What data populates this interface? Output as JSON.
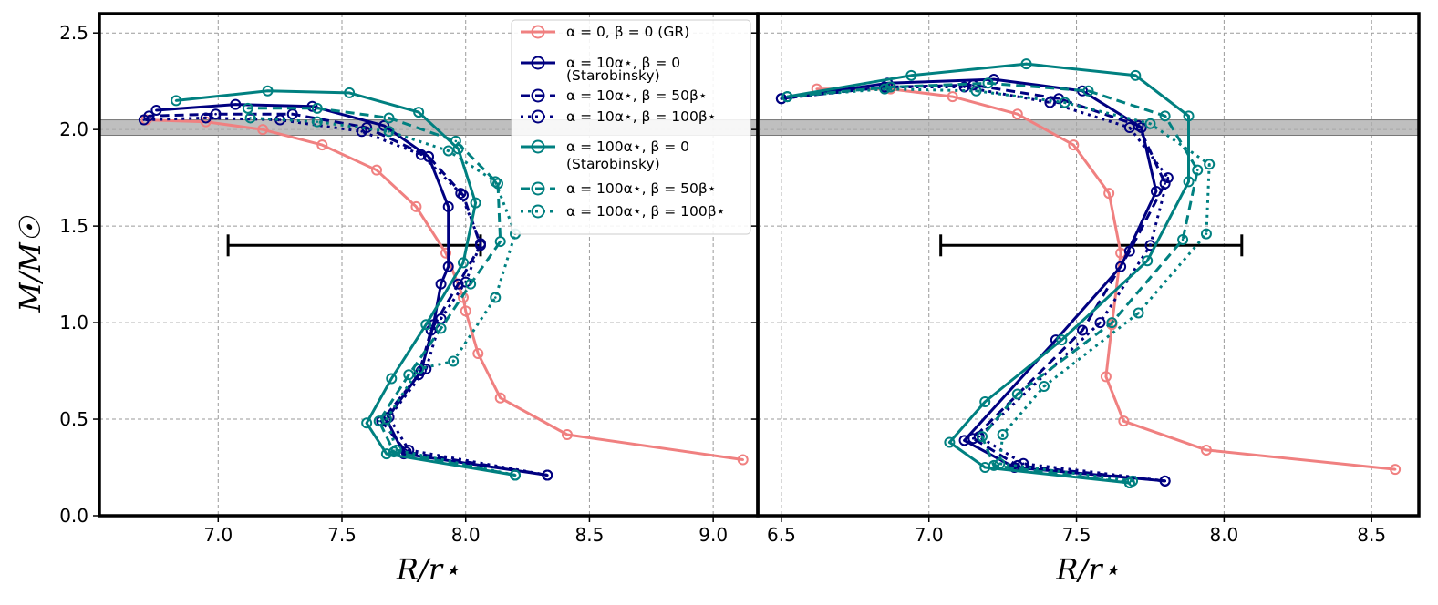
{
  "figure": {
    "ylabel": "M/M☉",
    "legend": {
      "placement": "top-right of left panel",
      "entries": [
        {
          "series": "GR",
          "lines": [
            "α = 0, β = 0 (GR)"
          ]
        },
        {
          "series": "a10_b0",
          "lines": [
            "α = 10α⋆, β = 0",
            "(Starobinsky)"
          ]
        },
        {
          "series": "a10_b50",
          "lines": [
            "α = 10α⋆, β = 50β⋆"
          ]
        },
        {
          "series": "a10_b100",
          "lines": [
            "α = 10α⋆, β = 100β⋆"
          ]
        },
        {
          "series": "a100_b0",
          "lines": [
            "α = 100α⋆, β = 0",
            "(Starobinsky)"
          ]
        },
        {
          "series": "a100_b50",
          "lines": [
            "α = 100α⋆, β = 50β⋆"
          ]
        },
        {
          "series": "a100_b100",
          "lines": [
            "α = 100α⋆, β = 100β⋆"
          ]
        }
      ]
    }
  },
  "styles": {
    "GR": {
      "color": "#f08080",
      "dash": "solid"
    },
    "a10_b0": {
      "color": "#000080",
      "dash": "solid"
    },
    "a10_b50": {
      "color": "#000080",
      "dash": "dashed"
    },
    "a10_b100": {
      "color": "#000080",
      "dash": "dotted"
    },
    "a100_b0": {
      "color": "#008080",
      "dash": "solid"
    },
    "a100_b50": {
      "color": "#008080",
      "dash": "dashed"
    },
    "a100_b100": {
      "color": "#008080",
      "dash": "dotted"
    },
    "band_color": "#a9a9a9",
    "errorbar_color": "#000000"
  },
  "chart_data": [
    {
      "type": "line",
      "panel": "left",
      "xlabel": "R/r⋆",
      "ylabel": "M/M☉",
      "xlim": [
        6.52,
        9.18
      ],
      "ylim": [
        0.0,
        2.6
      ],
      "xticks": [
        7.0,
        7.5,
        8.0,
        8.5,
        9.0
      ],
      "xtick_labels": [
        "7.0",
        "7.5",
        "8.0",
        "8.5",
        "9.0"
      ],
      "yticks": [
        0.0,
        0.5,
        1.0,
        1.5,
        2.0,
        2.5
      ],
      "ytick_labels": [
        "0.0",
        "0.5",
        "1.0",
        "1.5",
        "2.0",
        "2.5"
      ],
      "grid": true,
      "band": {
        "y_min": 1.97,
        "y_max": 2.05
      },
      "errorbar": {
        "y": 1.4,
        "x_min": 7.04,
        "x_max": 8.06
      },
      "series": [
        {
          "id": "GR",
          "name": "α = 0, β = 0 (GR)",
          "points": [
            [
              9.12,
              0.29
            ],
            [
              8.41,
              0.42
            ],
            [
              8.14,
              0.61
            ],
            [
              8.05,
              0.84
            ],
            [
              8.0,
              1.06
            ],
            [
              7.99,
              1.13
            ],
            [
              7.92,
              1.36
            ],
            [
              7.8,
              1.6
            ],
            [
              7.64,
              1.79
            ],
            [
              7.42,
              1.92
            ],
            [
              7.18,
              2.0
            ],
            [
              6.95,
              2.04
            ],
            [
              6.71,
              2.05
            ]
          ]
        },
        {
          "id": "a10_b0",
          "name": "α = 10α⋆, β = 0",
          "points": [
            [
              8.33,
              0.21
            ],
            [
              7.75,
              0.32
            ],
            [
              7.68,
              0.5
            ],
            [
              7.82,
              0.75
            ],
            [
              7.87,
              0.99
            ],
            [
              7.9,
              1.2
            ],
            [
              7.93,
              1.29
            ],
            [
              7.93,
              1.6
            ],
            [
              7.85,
              1.86
            ],
            [
              7.67,
              2.02
            ],
            [
              7.38,
              2.12
            ],
            [
              7.07,
              2.13
            ],
            [
              6.75,
              2.1
            ]
          ]
        },
        {
          "id": "a10_b50",
          "name": "α = 10α⋆, β = 50β⋆",
          "points": [
            [
              8.33,
              0.21
            ],
            [
              7.76,
              0.33
            ],
            [
              7.66,
              0.49
            ],
            [
              7.81,
              0.73
            ],
            [
              7.86,
              0.96
            ],
            [
              7.97,
              1.2
            ],
            [
              8.06,
              1.4
            ],
            [
              7.99,
              1.66
            ],
            [
              7.85,
              1.86
            ],
            [
              7.6,
              2.01
            ],
            [
              7.3,
              2.08
            ],
            [
              6.99,
              2.08
            ],
            [
              6.72,
              2.07
            ]
          ]
        },
        {
          "id": "a10_b100",
          "name": "α = 10α⋆, β = 100β⋆",
          "points": [
            [
              8.33,
              0.21
            ],
            [
              7.77,
              0.34
            ],
            [
              7.69,
              0.51
            ],
            [
              7.84,
              0.76
            ],
            [
              7.9,
              1.02
            ],
            [
              8.0,
              1.21
            ],
            [
              8.06,
              1.41
            ],
            [
              7.98,
              1.67
            ],
            [
              7.82,
              1.87
            ],
            [
              7.58,
              1.99
            ],
            [
              7.25,
              2.05
            ],
            [
              6.95,
              2.06
            ],
            [
              6.7,
              2.05
            ]
          ]
        },
        {
          "id": "a100_b0",
          "name": "α = 100α⋆, β = 0",
          "points": [
            [
              8.2,
              0.21
            ],
            [
              7.68,
              0.32
            ],
            [
              7.6,
              0.48
            ],
            [
              7.7,
              0.71
            ],
            [
              7.84,
              0.99
            ],
            [
              7.99,
              1.31
            ],
            [
              8.04,
              1.62
            ],
            [
              7.97,
              1.9
            ],
            [
              7.81,
              2.09
            ],
            [
              7.53,
              2.19
            ],
            [
              7.2,
              2.2
            ],
            [
              6.83,
              2.15
            ]
          ]
        },
        {
          "id": "a100_b50",
          "name": "α = 100α⋆, β = 50β⋆",
          "points": [
            [
              8.2,
              0.21
            ],
            [
              7.71,
              0.33
            ],
            [
              7.65,
              0.49
            ],
            [
              7.77,
              0.73
            ],
            [
              7.9,
              0.97
            ],
            [
              8.02,
              1.2
            ],
            [
              8.14,
              1.42
            ],
            [
              8.13,
              1.72
            ],
            [
              7.96,
              1.94
            ],
            [
              7.69,
              2.06
            ],
            [
              7.4,
              2.11
            ],
            [
              7.12,
              2.11
            ]
          ]
        },
        {
          "id": "a100_b100",
          "name": "α = 100α⋆, β = 100β⋆",
          "points": [
            [
              8.2,
              0.21
            ],
            [
              7.72,
              0.34
            ],
            [
              7.68,
              0.5
            ],
            [
              7.81,
              0.76
            ],
            [
              7.95,
              0.8
            ],
            [
              8.12,
              1.13
            ],
            [
              8.2,
              1.46
            ],
            [
              8.12,
              1.73
            ],
            [
              7.93,
              1.89
            ],
            [
              7.69,
              1.99
            ],
            [
              7.4,
              2.04
            ],
            [
              7.13,
              2.06
            ]
          ]
        }
      ]
    },
    {
      "type": "line",
      "panel": "right",
      "xlabel": "R/r⋆",
      "ylabel": "",
      "xlim": [
        6.42,
        8.66
      ],
      "ylim": [
        0.0,
        2.6
      ],
      "xticks": [
        6.5,
        7.0,
        7.5,
        8.0,
        8.5
      ],
      "xtick_labels": [
        "6.5",
        "7.0",
        "7.5",
        "8.0",
        "8.5"
      ],
      "yticks": [
        0.0,
        0.5,
        1.0,
        1.5,
        2.0,
        2.5
      ],
      "ytick_labels": [],
      "grid": true,
      "band": {
        "y_min": 1.97,
        "y_max": 2.05
      },
      "errorbar": {
        "y": 1.4,
        "x_min": 7.04,
        "x_max": 8.06
      },
      "series": [
        {
          "id": "GR",
          "name": "α = 0, β = 0 (GR)",
          "points": [
            [
              8.58,
              0.24
            ],
            [
              7.94,
              0.34
            ],
            [
              7.66,
              0.49
            ],
            [
              7.6,
              0.72
            ],
            [
              7.62,
              0.99
            ],
            [
              7.65,
              1.36
            ],
            [
              7.61,
              1.67
            ],
            [
              7.49,
              1.92
            ],
            [
              7.3,
              2.08
            ],
            [
              7.08,
              2.17
            ],
            [
              6.87,
              2.21
            ],
            [
              6.62,
              2.21
            ]
          ]
        },
        {
          "id": "a10_b0",
          "name": "α = 10α⋆, β = 0",
          "points": [
            [
              7.8,
              0.18
            ],
            [
              7.29,
              0.25
            ],
            [
              7.12,
              0.39
            ],
            [
              7.43,
              0.91
            ],
            [
              7.65,
              1.29
            ],
            [
              7.77,
              1.68
            ],
            [
              7.72,
              2.01
            ],
            [
              7.52,
              2.2
            ],
            [
              7.22,
              2.26
            ],
            [
              6.86,
              2.24
            ],
            [
              6.5,
              2.16
            ]
          ]
        },
        {
          "id": "a10_b50",
          "name": "α = 10α⋆, β = 50β⋆",
          "points": [
            [
              7.8,
              0.18
            ],
            [
              7.3,
              0.26
            ],
            [
              7.15,
              0.4
            ],
            [
              7.52,
              0.96
            ],
            [
              7.68,
              1.37
            ],
            [
              7.8,
              1.72
            ],
            [
              7.71,
              2.02
            ],
            [
              7.44,
              2.16
            ],
            [
              7.15,
              2.23
            ],
            [
              6.85,
              2.22
            ],
            [
              6.5,
              2.16
            ]
          ]
        },
        {
          "id": "a10_b100",
          "name": "α = 10α⋆, β = 100β⋆",
          "points": [
            [
              7.8,
              0.18
            ],
            [
              7.32,
              0.27
            ],
            [
              7.17,
              0.41
            ],
            [
              7.58,
              1.0
            ],
            [
              7.75,
              1.4
            ],
            [
              7.81,
              1.75
            ],
            [
              7.68,
              2.01
            ],
            [
              7.41,
              2.14
            ],
            [
              7.12,
              2.22
            ],
            [
              6.85,
              2.22
            ],
            [
              6.5,
              2.16
            ]
          ]
        },
        {
          "id": "a100_b0",
          "name": "α = 100α⋆, β = 0",
          "points": [
            [
              7.68,
              0.17
            ],
            [
              7.19,
              0.25
            ],
            [
              7.07,
              0.38
            ],
            [
              7.19,
              0.59
            ],
            [
              7.45,
              0.91
            ],
            [
              7.74,
              1.32
            ],
            [
              7.88,
              1.73
            ],
            [
              7.88,
              2.07
            ],
            [
              7.7,
              2.28
            ],
            [
              7.33,
              2.34
            ],
            [
              6.94,
              2.28
            ],
            [
              6.52,
              2.17
            ]
          ]
        },
        {
          "id": "a100_b50",
          "name": "α = 100α⋆, β = 50β⋆",
          "points": [
            [
              7.68,
              0.17
            ],
            [
              7.22,
              0.26
            ],
            [
              7.18,
              0.41
            ],
            [
              7.3,
              0.63
            ],
            [
              7.62,
              1.0
            ],
            [
              7.86,
              1.43
            ],
            [
              7.91,
              1.79
            ],
            [
              7.8,
              2.07
            ],
            [
              7.54,
              2.2
            ],
            [
              7.2,
              2.24
            ],
            [
              6.87,
              2.22
            ],
            [
              6.52,
              2.17
            ]
          ]
        },
        {
          "id": "a100_b100",
          "name": "α = 100α⋆, β = 100β⋆",
          "points": [
            [
              7.69,
              0.18
            ],
            [
              7.24,
              0.27
            ],
            [
              7.25,
              0.42
            ],
            [
              7.39,
              0.67
            ],
            [
              7.71,
              1.05
            ],
            [
              7.94,
              1.46
            ],
            [
              7.95,
              1.82
            ],
            [
              7.75,
              2.03
            ],
            [
              7.46,
              2.14
            ],
            [
              7.16,
              2.2
            ],
            [
              6.85,
              2.21
            ],
            [
              6.52,
              2.17
            ]
          ]
        }
      ]
    }
  ]
}
